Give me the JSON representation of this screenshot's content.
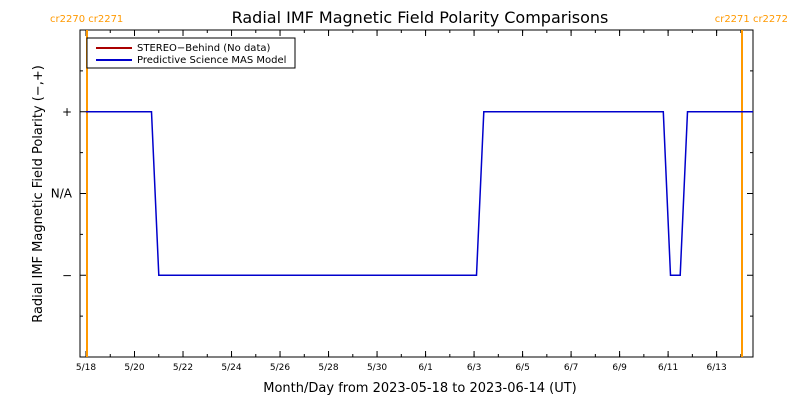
{
  "chart_data": {
    "type": "line",
    "title": "Radial IMF Magnetic Field Polarity Comparisons",
    "xlabel": "Month/Day from 2023-05-18 to 2023-06-14 (UT)",
    "ylabel": "Radial IMF Magnetic Field Polarity (−,+)",
    "x_range_days": [
      0,
      27.5
    ],
    "x_start_date": "2023-05-18",
    "ylim": [
      -2,
      2
    ],
    "x_ticks": [
      {
        "day": 0,
        "label": "5/18"
      },
      {
        "day": 2,
        "label": "5/20"
      },
      {
        "day": 4,
        "label": "5/22"
      },
      {
        "day": 6,
        "label": "5/24"
      },
      {
        "day": 8,
        "label": "5/26"
      },
      {
        "day": 10,
        "label": "5/28"
      },
      {
        "day": 12,
        "label": "5/30"
      },
      {
        "day": 14,
        "label": "6/1"
      },
      {
        "day": 16,
        "label": "6/3"
      },
      {
        "day": 18,
        "label": "6/5"
      },
      {
        "day": 20,
        "label": "6/7"
      },
      {
        "day": 22,
        "label": "6/9"
      },
      {
        "day": 24,
        "label": "6/11"
      },
      {
        "day": 26,
        "label": "6/13"
      }
    ],
    "y_ticks": [
      {
        "value": 1,
        "label": "+"
      },
      {
        "value": 0,
        "label": "N/A"
      },
      {
        "value": -1,
        "label": "−"
      }
    ],
    "carrington_markers": [
      {
        "day": 0.1,
        "label": "cr2270 cr2271",
        "position": "left"
      },
      {
        "day": 27.5,
        "label": "cr2271 cr2272",
        "position": "right"
      }
    ],
    "legend": {
      "position": "top-left",
      "entries": [
        {
          "name": "STEREO−Behind (No data)",
          "color": "#aa0000"
        },
        {
          "name": "Predictive Science MAS Model",
          "color": "#0000cc"
        }
      ]
    },
    "series": [
      {
        "name": "Predictive Science MAS Model",
        "color": "#0000cc",
        "x": [
          0,
          2.7,
          3.0,
          16.1,
          16.4,
          23.8,
          24.1,
          24.5,
          24.8,
          27.5
        ],
        "values": [
          1,
          1,
          -1,
          -1,
          1,
          1,
          -1,
          -1,
          1,
          1
        ]
      }
    ],
    "colors": {
      "marker_line": "#ff9900",
      "axes": "#000000"
    }
  }
}
